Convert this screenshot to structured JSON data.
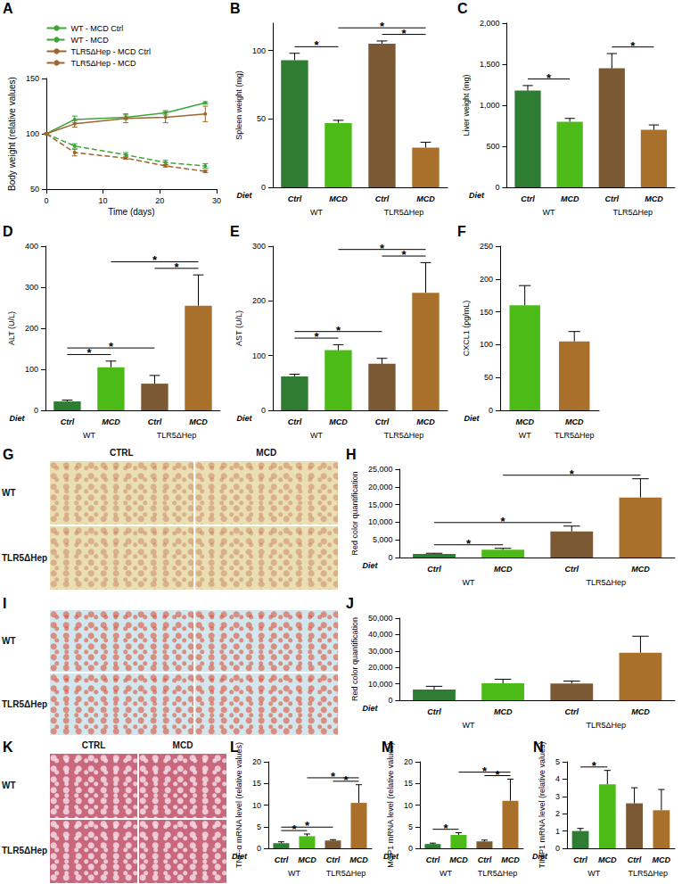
{
  "chart_data": [
    {
      "panel": "A",
      "type": "line",
      "x_label": "Time (days)",
      "y_label": "Body weight (relative values)",
      "x": [
        0,
        5,
        14,
        21,
        28
      ],
      "xlim": [
        0,
        30
      ],
      "xticks": [
        0,
        10,
        20,
        30
      ],
      "ylim": [
        50,
        150
      ],
      "yticks": [
        50,
        100,
        150
      ],
      "grid": false,
      "legend": "upper left",
      "series": [
        {
          "name": "WT - MCD Ctrl",
          "color": "#3aa637",
          "marker": "circle",
          "line_style": "solid",
          "values": [
            100,
            113,
            115,
            119,
            128
          ],
          "errors": [
            0,
            3,
            2,
            2,
            1
          ]
        },
        {
          "name": "WT - MCD",
          "color": "#3aa637",
          "marker": "circle",
          "line_style": "dashed",
          "values": [
            100,
            89,
            81,
            74,
            71
          ],
          "errors": [
            0,
            2,
            2,
            2,
            2
          ]
        },
        {
          "name": "TLR5ΔHep - MCD Ctrl",
          "color": "#a0642d",
          "marker": "circle",
          "line_style": "solid",
          "values": [
            100,
            109,
            114,
            115,
            118
          ],
          "errors": [
            0,
            3,
            4,
            5,
            7
          ]
        },
        {
          "name": "TLR5ΔHep - MCD",
          "color": "#a0642d",
          "marker": "circle",
          "line_style": "dashed",
          "values": [
            100,
            83,
            78,
            71,
            66
          ],
          "errors": [
            0,
            3,
            1,
            1,
            1
          ]
        }
      ]
    },
    {
      "panel": "B",
      "type": "bar",
      "x_label": "Diet",
      "y_label": "Spleen weight (mg)",
      "categories": [
        "Ctrl",
        "MCD",
        "Ctrl",
        "MCD"
      ],
      "groups": [
        "WT",
        "TLR5ΔHep"
      ],
      "values": [
        93,
        47,
        105,
        29
      ],
      "errors": [
        5,
        2,
        2,
        4
      ],
      "colors": [
        "#2e7d32",
        "#4cbb17",
        "#7b5a33",
        "#a8702a"
      ],
      "ylim": [
        0,
        120
      ],
      "yticks": [
        0,
        50,
        100
      ],
      "grid": false,
      "significance": [
        {
          "pair": [
            0,
            1
          ],
          "text": "*"
        },
        {
          "pair": [
            2,
            3
          ],
          "text": "*"
        },
        {
          "pair": [
            1,
            3
          ],
          "text": "*"
        }
      ]
    },
    {
      "panel": "C",
      "type": "bar",
      "x_label": "Diet",
      "y_label": "Liver weight (mg)",
      "categories": [
        "Ctrl",
        "MCD",
        "Ctrl",
        "MCD"
      ],
      "groups": [
        "WT",
        "TLR5ΔHep"
      ],
      "values": [
        1180,
        800,
        1450,
        700
      ],
      "errors": [
        60,
        40,
        180,
        60
      ],
      "colors": [
        "#2e7d32",
        "#4cbb17",
        "#7b5a33",
        "#a8702a"
      ],
      "ylim": [
        0,
        2000
      ],
      "yticks": [
        0,
        500,
        1000,
        1500,
        2000
      ],
      "grid": false,
      "significance": [
        {
          "pair": [
            0,
            1
          ],
          "text": "*"
        },
        {
          "pair": [
            2,
            3
          ],
          "text": "*"
        }
      ]
    },
    {
      "panel": "D",
      "type": "bar",
      "x_label": "Diet",
      "y_label": "ALT (U/L)",
      "categories": [
        "Ctrl",
        "MCD",
        "Ctrl",
        "MCD"
      ],
      "groups": [
        "WT",
        "TLR5ΔHep"
      ],
      "values": [
        22,
        105,
        65,
        255
      ],
      "errors": [
        3,
        15,
        20,
        75
      ],
      "colors": [
        "#2e7d32",
        "#4cbb17",
        "#7b5a33",
        "#a8702a"
      ],
      "ylim": [
        0,
        400
      ],
      "yticks": [
        0,
        100,
        200,
        300,
        400
      ],
      "grid": false,
      "significance": [
        {
          "pair": [
            0,
            1
          ],
          "text": "*"
        },
        {
          "pair": [
            0,
            2
          ],
          "text": "*"
        },
        {
          "pair": [
            2,
            3
          ],
          "text": "*"
        },
        {
          "pair": [
            1,
            3
          ],
          "text": "*"
        }
      ]
    },
    {
      "panel": "E",
      "type": "bar",
      "x_label": "Diet",
      "y_label": "AST (U/L)",
      "categories": [
        "Ctrl",
        "MCD",
        "Ctrl",
        "MCD"
      ],
      "groups": [
        "WT",
        "TLR5ΔHep"
      ],
      "values": [
        62,
        110,
        85,
        215
      ],
      "errors": [
        4,
        10,
        10,
        55
      ],
      "colors": [
        "#2e7d32",
        "#4cbb17",
        "#7b5a33",
        "#a8702a"
      ],
      "ylim": [
        0,
        300
      ],
      "yticks": [
        0,
        100,
        200,
        300
      ],
      "grid": false,
      "significance": [
        {
          "pair": [
            0,
            1
          ],
          "text": "*"
        },
        {
          "pair": [
            0,
            2
          ],
          "text": "*"
        },
        {
          "pair": [
            2,
            3
          ],
          "text": "*"
        },
        {
          "pair": [
            1,
            3
          ],
          "text": "*"
        }
      ]
    },
    {
      "panel": "F",
      "type": "bar",
      "x_label": "Diet",
      "y_label": "CXCL1 (pg/mL)",
      "categories": [
        "MCD",
        "MCD"
      ],
      "groups": [
        "WT",
        "TLR5ΔHep"
      ],
      "values": [
        160,
        105
      ],
      "errors": [
        30,
        15
      ],
      "colors": [
        "#4cbb17",
        "#a8702a"
      ],
      "ylim": [
        0,
        250
      ],
      "yticks": [
        0,
        50,
        100,
        150,
        200,
        250
      ],
      "grid": false,
      "significance": []
    },
    {
      "panel": "H",
      "type": "bar",
      "x_label": "Diet",
      "y_label": "Red color quantification",
      "categories": [
        "Ctrl",
        "MCD",
        "Ctrl",
        "MCD"
      ],
      "groups": [
        "WT",
        "TLR5ΔHep"
      ],
      "values": [
        1000,
        2200,
        7400,
        17000
      ],
      "errors": [
        200,
        400,
        1500,
        5300
      ],
      "colors": [
        "#2e7d32",
        "#4cbb17",
        "#7b5a33",
        "#a8702a"
      ],
      "ylim": [
        0,
        25000
      ],
      "yticks": [
        0,
        5000,
        10000,
        15000,
        20000,
        25000
      ],
      "grid": false,
      "significance": [
        {
          "pair": [
            0,
            1
          ],
          "text": "*"
        },
        {
          "pair": [
            0,
            2
          ],
          "text": "*"
        },
        {
          "pair": [
            1,
            3
          ],
          "text": "*"
        }
      ]
    },
    {
      "panel": "J",
      "type": "bar",
      "x_label": "Diet",
      "y_label": "Red color quantification",
      "categories": [
        "Ctrl",
        "MCD",
        "Ctrl",
        "MCD"
      ],
      "groups": [
        "WT",
        "TLR5ΔHep"
      ],
      "values": [
        6500,
        10300,
        10200,
        29000
      ],
      "errors": [
        2000,
        2500,
        1500,
        10000
      ],
      "colors": [
        "#2e7d32",
        "#4cbb17",
        "#7b5a33",
        "#a8702a"
      ],
      "ylim": [
        0,
        50000
      ],
      "yticks": [
        0,
        10000,
        20000,
        30000,
        40000,
        50000
      ],
      "grid": false,
      "significance": []
    },
    {
      "panel": "L",
      "type": "bar",
      "x_label": "Diet",
      "y_label": "TNF-α mRNA level (relative values)",
      "categories": [
        "Ctrl",
        "MCD",
        "Ctrl",
        "MCD"
      ],
      "groups": [
        "WT",
        "TLR5ΔHep"
      ],
      "values": [
        1.2,
        2.8,
        1.8,
        10.5
      ],
      "errors": [
        0.3,
        0.5,
        0.2,
        4.2
      ],
      "colors": [
        "#2e7d32",
        "#4cbb17",
        "#7b5a33",
        "#a8702a"
      ],
      "ylim": [
        0,
        20
      ],
      "yticks": [
        0,
        5,
        10,
        15,
        20
      ],
      "grid": false,
      "significance": [
        {
          "pair": [
            0,
            1
          ],
          "text": "*"
        },
        {
          "pair": [
            0,
            2
          ],
          "text": "*"
        },
        {
          "pair": [
            2,
            3
          ],
          "text": "*"
        },
        {
          "pair": [
            1,
            3
          ],
          "text": "*"
        }
      ]
    },
    {
      "panel": "M",
      "type": "bar",
      "x_label": "Diet",
      "y_label": "MCP1 mRNA level (relative values)",
      "categories": [
        "Ctrl",
        "MCD",
        "Ctrl",
        "MCD"
      ],
      "groups": [
        "WT",
        "TLR5ΔHep"
      ],
      "values": [
        1.0,
        3.1,
        1.6,
        11
      ],
      "errors": [
        0.2,
        0.5,
        0.3,
        5
      ],
      "colors": [
        "#2e7d32",
        "#4cbb17",
        "#7b5a33",
        "#a8702a"
      ],
      "ylim": [
        0,
        20
      ],
      "yticks": [
        0,
        5,
        10,
        15,
        20
      ],
      "grid": false,
      "significance": [
        {
          "pair": [
            0,
            1
          ],
          "text": "*"
        },
        {
          "pair": [
            2,
            3
          ],
          "text": "*"
        },
        {
          "pair": [
            1,
            3
          ],
          "text": "*"
        }
      ]
    },
    {
      "panel": "N",
      "type": "bar",
      "x_label": "Diet",
      "y_label": "TIMP1 mRNA level (relative values)",
      "categories": [
        "Ctrl",
        "MCD",
        "Ctrl",
        "MCD"
      ],
      "groups": [
        "WT",
        "TLR5ΔHep"
      ],
      "values": [
        1.0,
        3.7,
        2.6,
        2.2
      ],
      "errors": [
        0.15,
        0.8,
        0.9,
        1.2
      ],
      "colors": [
        "#2e7d32",
        "#4cbb17",
        "#7b5a33",
        "#a8702a"
      ],
      "ylim": [
        0,
        5
      ],
      "yticks": [
        0,
        1,
        2,
        3,
        4,
        5
      ],
      "grid": false,
      "significance": [
        {
          "pair": [
            0,
            1
          ],
          "text": "*"
        }
      ]
    }
  ],
  "images": [
    {
      "panel": "G",
      "columns": [
        "CTRL",
        "MCD"
      ],
      "rows": [
        "WT",
        "TLR5ΔHep"
      ]
    },
    {
      "panel": "I",
      "columns": [],
      "rows": [
        "WT",
        "TLR5ΔHep"
      ]
    },
    {
      "panel": "K",
      "columns": [
        "CTRL",
        "MCD"
      ],
      "rows": [
        "WT",
        "TLR5ΔHep"
      ]
    }
  ]
}
